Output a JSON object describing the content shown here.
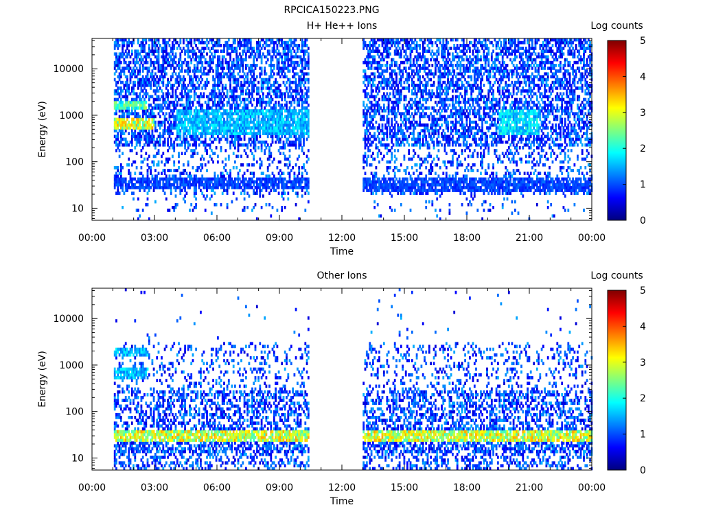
{
  "figure": {
    "title": "RPCICA150223.PNG"
  },
  "chart_data": [
    {
      "type": "heatmap",
      "title": "H+ He++ Ions",
      "xlabel": "Time",
      "ylabel": "Energy (eV)",
      "x_ticks": [
        "00:00",
        "03:00",
        "06:00",
        "09:00",
        "12:00",
        "15:00",
        "18:00",
        "21:00",
        "00:00"
      ],
      "x_range_hours": [
        0,
        24
      ],
      "y_scale": "log",
      "y_range": [
        5.5,
        45000
      ],
      "y_ticks": [
        {
          "value": 10,
          "label": "10"
        },
        {
          "value": 100,
          "label": "100"
        },
        {
          "value": 1000,
          "label": "1000"
        },
        {
          "value": 10000,
          "label": "10000"
        }
      ],
      "colorbar": {
        "label": "Log counts",
        "range": [
          0,
          5
        ],
        "ticks": [
          "0",
          "1",
          "2",
          "3",
          "4",
          "5"
        ]
      },
      "data_coverage_hours": [
        [
          1.05,
          10.4
        ],
        [
          13.0,
          23.95
        ]
      ],
      "features": [
        {
          "description": "intense band",
          "energy_ev": [
            500,
            900
          ],
          "time_hours": [
            1.05,
            3.0
          ],
          "log_counts": 3.0
        },
        {
          "description": "band",
          "energy_ev": [
            1300,
            2000
          ],
          "time_hours": [
            1.05,
            2.6
          ],
          "log_counts": 2.3
        },
        {
          "description": "band",
          "energy_ev": [
            400,
            1300
          ],
          "time_hours": [
            4.0,
            10.4
          ],
          "log_counts": 1.6
        },
        {
          "description": "band",
          "energy_ev": [
            25,
            45
          ],
          "time_hours": [
            1.05,
            10.4
          ],
          "log_counts": 1.0
        },
        {
          "description": "band",
          "energy_ev": [
            400,
            1300
          ],
          "time_hours": [
            19.5,
            21.5
          ],
          "log_counts": 1.8
        },
        {
          "description": "band",
          "energy_ev": [
            22,
            45
          ],
          "time_hours": [
            13.0,
            23.95
          ],
          "log_counts": 1.0
        }
      ]
    },
    {
      "type": "heatmap",
      "title": "Other Ions",
      "xlabel": "Time",
      "ylabel": "Energy (eV)",
      "x_ticks": [
        "00:00",
        "03:00",
        "06:00",
        "09:00",
        "12:00",
        "15:00",
        "18:00",
        "21:00",
        "00:00"
      ],
      "x_range_hours": [
        0,
        24
      ],
      "y_scale": "log",
      "y_range": [
        5.5,
        45000
      ],
      "y_ticks": [
        {
          "value": 10,
          "label": "10"
        },
        {
          "value": 100,
          "label": "100"
        },
        {
          "value": 1000,
          "label": "1000"
        },
        {
          "value": 10000,
          "label": "10000"
        }
      ],
      "colorbar": {
        "label": "Log counts",
        "range": [
          0,
          5
        ],
        "ticks": [
          "0",
          "1",
          "2",
          "3",
          "4",
          "5"
        ]
      },
      "data_coverage_hours": [
        [
          1.05,
          10.4
        ],
        [
          13.0,
          23.95
        ]
      ],
      "features": [
        {
          "description": "intense band",
          "energy_ev": [
            22,
            42
          ],
          "time_hours": [
            1.05,
            10.4
          ],
          "log_counts": 3.0
        },
        {
          "description": "intense band",
          "energy_ev": [
            22,
            42
          ],
          "time_hours": [
            13.0,
            23.95
          ],
          "log_counts": 3.0
        },
        {
          "description": "band",
          "energy_ev": [
            500,
            900
          ],
          "time_hours": [
            1.05,
            2.7
          ],
          "log_counts": 1.6
        },
        {
          "description": "band",
          "energy_ev": [
            1500,
            2200
          ],
          "time_hours": [
            1.05,
            2.7
          ],
          "log_counts": 1.6
        }
      ]
    }
  ],
  "colors": {
    "axis": "#000000",
    "colormap": [
      "#00007f",
      "#0000ff",
      "#007fff",
      "#00ffff",
      "#7fff7f",
      "#ffff00",
      "#ff7f00",
      "#ff0000",
      "#7f0000"
    ]
  }
}
